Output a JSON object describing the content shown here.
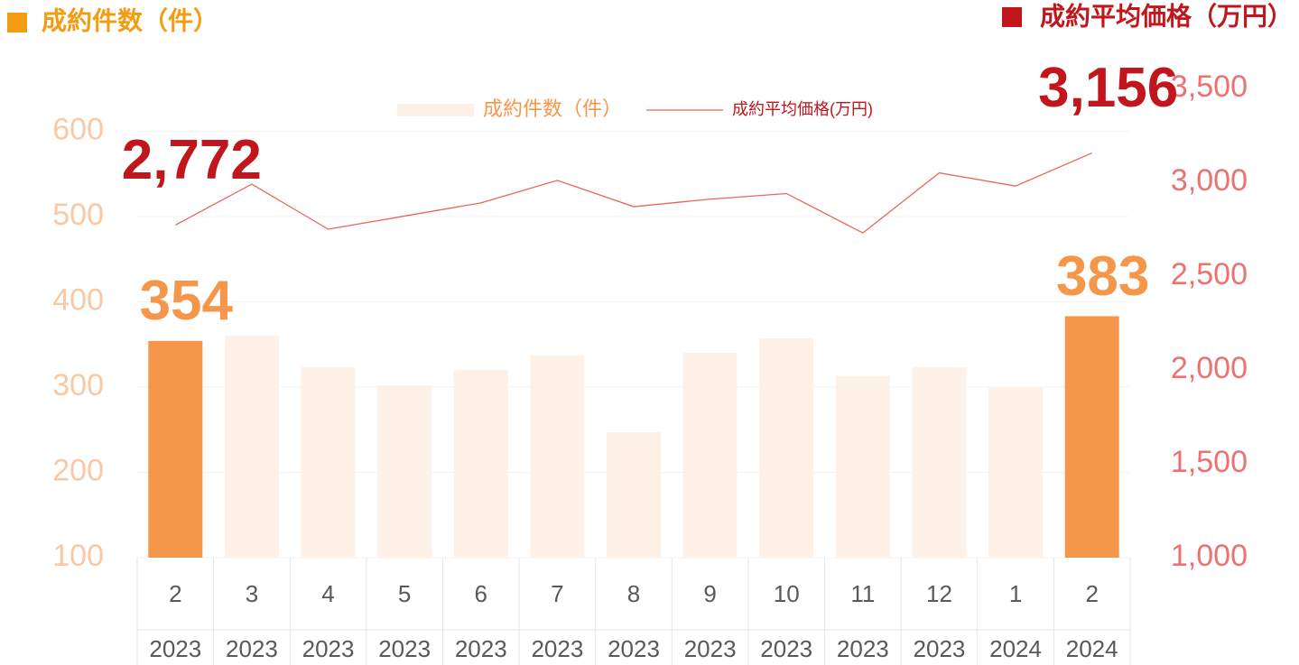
{
  "chart_data": {
    "type": "bar_line",
    "y_label": "成約件数（件）",
    "y2_label": "成約平均価格（万円）",
    "categories": [
      "2",
      "3",
      "4",
      "5",
      "6",
      "7",
      "8",
      "9",
      "10",
      "11",
      "12",
      "1",
      "2"
    ],
    "years": [
      "2023",
      "2023",
      "2023",
      "2023",
      "2023",
      "2023",
      "2023",
      "2023",
      "2023",
      "2023",
      "2023",
      "2024",
      "2024"
    ],
    "series": [
      {
        "name": "成約件数（件）",
        "type": "bar",
        "color": "#fdf1e8",
        "colors": [
          "#f5974a",
          "#fdf1e8",
          "#fdf1e8",
          "#fdf1e8",
          "#fdf1e8",
          "#fdf1e8",
          "#fdf1e8",
          "#fdf1e8",
          "#fdf1e8",
          "#fdf1e8",
          "#fdf1e8",
          "#fdf1e8",
          "#f5974a"
        ],
        "values": [
          354,
          360,
          323,
          302,
          320,
          337,
          247,
          340,
          357,
          313,
          323,
          299,
          383
        ],
        "value_labels": [
          "354",
          null,
          null,
          null,
          null,
          null,
          null,
          null,
          null,
          null,
          null,
          null,
          "383"
        ],
        "label_color": "#f5974a"
      },
      {
        "name": "成約平均価格(万円)",
        "type": "line",
        "axis": "y2",
        "color": "#e8665c",
        "values": [
          2772,
          2990,
          2750,
          2820,
          2890,
          3010,
          2870,
          2910,
          2940,
          2730,
          3050,
          2980,
          3156
        ],
        "value_labels": [
          "2,772",
          null,
          null,
          null,
          null,
          null,
          null,
          null,
          null,
          null,
          null,
          null,
          "3,156"
        ],
        "label_color": "#c0161c"
      }
    ],
    "ylim": [
      100,
      650
    ],
    "yticks": [
      100,
      200,
      300,
      400,
      500,
      600
    ],
    "y2lim": [
      1000,
      3500
    ],
    "y2ticks": [
      {
        "value": 1000,
        "label": "1,000"
      },
      {
        "value": 1500,
        "label": "1,500"
      },
      {
        "value": 2000,
        "label": "2,000"
      },
      {
        "value": 2500,
        "label": "2,500"
      },
      {
        "value": 3000,
        "label": "3,000"
      },
      {
        "value": 3500,
        "label": "3,500"
      }
    ],
    "grid": true
  }
}
